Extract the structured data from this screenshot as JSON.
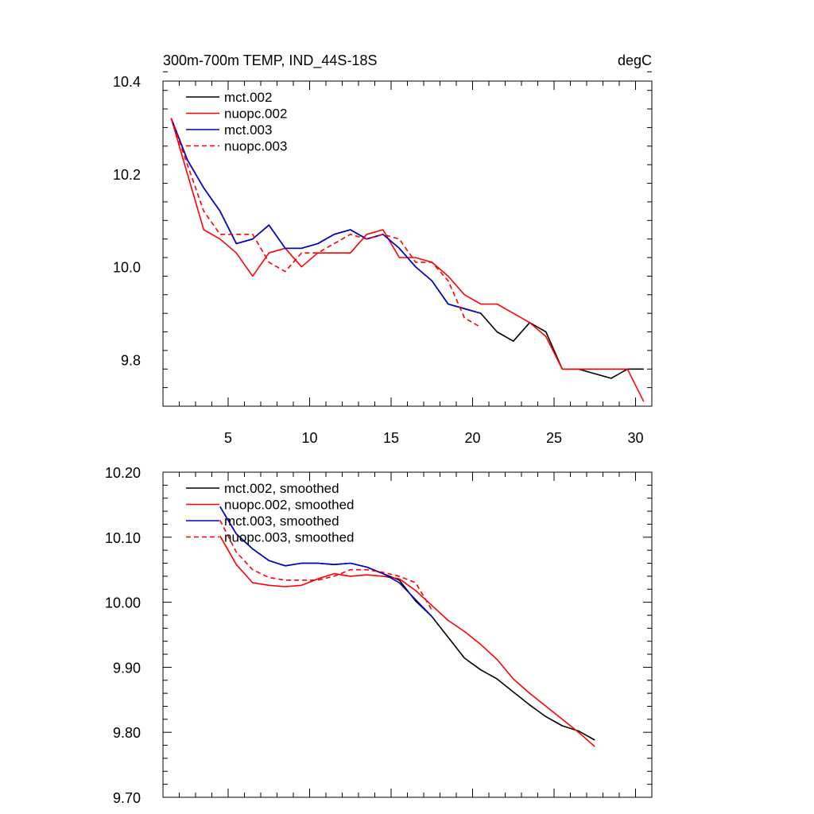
{
  "chart_data": [
    {
      "type": "line",
      "title_left": "300m-700m TEMP, IND_44S-18S",
      "title_right": "degC",
      "xlabel": "",
      "ylabel": "",
      "xlim": [
        1,
        31
      ],
      "ylim": [
        9.7,
        10.4
      ],
      "xticks": [
        5,
        10,
        15,
        20,
        25,
        30
      ],
      "xtick_labels": [
        "5",
        "10",
        "15",
        "20",
        "25",
        "30"
      ],
      "yticks": [
        9.8,
        10.0,
        10.2,
        10.4
      ],
      "ytick_labels": [
        "9.8",
        "10.0",
        "10.2",
        "10.4"
      ],
      "legend_position": "top-left",
      "series": [
        {
          "name": "mct.002",
          "color": "#000000",
          "dash": "solid",
          "x": [
            1.5,
            2.5,
            3.5,
            4.5,
            5.5,
            6.5,
            7.5,
            8.5,
            9.5,
            10.5,
            11.5,
            12.5,
            13.5,
            14.5,
            15.5,
            16.5,
            17.5,
            18.5,
            19.5,
            20.5,
            21.5,
            22.5,
            23.5,
            24.5,
            25.5,
            26.5,
            27.5,
            28.5,
            29.5,
            30.5
          ],
          "y": [
            10.32,
            10.23,
            10.17,
            10.12,
            10.05,
            10.06,
            10.09,
            10.04,
            10.04,
            10.05,
            10.07,
            10.08,
            10.06,
            10.07,
            10.04,
            10.0,
            9.97,
            9.92,
            9.91,
            9.9,
            9.86,
            9.84,
            9.88,
            9.86,
            9.78,
            9.78,
            9.77,
            9.76,
            9.78,
            9.78
          ]
        },
        {
          "name": "nuopc.002",
          "color": "#ff0000",
          "dash": "solid",
          "x": [
            1.5,
            2.5,
            3.5,
            4.5,
            5.5,
            6.5,
            7.5,
            8.5,
            9.5,
            10.5,
            11.5,
            12.5,
            13.5,
            14.5,
            15.5,
            16.5,
            17.5,
            18.5,
            19.5,
            20.5,
            21.5,
            22.5,
            23.5,
            24.5,
            25.5,
            26.5,
            27.5,
            28.5,
            29.5,
            30.5
          ],
          "y": [
            10.32,
            10.2,
            10.08,
            10.06,
            10.03,
            9.98,
            10.03,
            10.04,
            10.0,
            10.03,
            10.03,
            10.03,
            10.07,
            10.08,
            10.02,
            10.02,
            10.01,
            9.98,
            9.94,
            9.92,
            9.92,
            9.9,
            9.88,
            9.85,
            9.78,
            9.78,
            9.78,
            9.78,
            9.78,
            9.71
          ]
        },
        {
          "name": "mct.003",
          "color": "#0000cc",
          "dash": "solid",
          "x": [
            1.5,
            2.5,
            3.5,
            4.5,
            5.5,
            6.5,
            7.5,
            8.5,
            9.5,
            10.5,
            11.5,
            12.5,
            13.5,
            14.5,
            15.5,
            16.5,
            17.5,
            18.5,
            19.5,
            20.5
          ],
          "y": [
            10.32,
            10.23,
            10.17,
            10.12,
            10.05,
            10.06,
            10.09,
            10.04,
            10.04,
            10.05,
            10.07,
            10.08,
            10.06,
            10.07,
            10.04,
            10.0,
            9.97,
            9.92,
            9.91,
            9.9
          ]
        },
        {
          "name": "nuopc.003",
          "color": "#ff0000",
          "dash": "dashed",
          "x": [
            1.5,
            2.5,
            3.5,
            4.5,
            5.5,
            6.5,
            7.5,
            8.5,
            9.5,
            10.5,
            11.5,
            12.5,
            13.5,
            14.5,
            15.5,
            16.5,
            17.5,
            18.5,
            19.5,
            20.5
          ],
          "y": [
            10.32,
            10.22,
            10.12,
            10.07,
            10.07,
            10.07,
            10.01,
            9.99,
            10.03,
            10.03,
            10.05,
            10.07,
            10.06,
            10.07,
            10.06,
            10.01,
            10.01,
            9.97,
            9.89,
            9.87
          ]
        }
      ]
    },
    {
      "type": "line",
      "title_left": "",
      "title_right": "",
      "xlabel": "",
      "ylabel": "",
      "xlim": [
        1,
        31
      ],
      "ylim": [
        9.7,
        10.2
      ],
      "xticks": [
        5,
        10,
        15,
        20,
        25,
        30
      ],
      "xtick_labels": [],
      "yticks": [
        9.7,
        9.8,
        9.9,
        10.0,
        10.1,
        10.2
      ],
      "ytick_labels": [
        "9.70",
        "9.80",
        "9.90",
        "10.00",
        "10.10",
        "10.20"
      ],
      "legend_position": "top-left",
      "series": [
        {
          "name": "mct.002, smoothed",
          "color": "#000000",
          "dash": "solid",
          "x": [
            4.5,
            5.5,
            6.5,
            7.5,
            8.5,
            9.5,
            10.5,
            11.5,
            12.5,
            13.5,
            14.5,
            15.5,
            16.5,
            17.5,
            18.5,
            19.5,
            20.5,
            21.5,
            22.5,
            23.5,
            24.5,
            25.5,
            26.5,
            27.5
          ],
          "y": [
            10.147,
            10.105,
            10.082,
            10.064,
            10.056,
            10.06,
            10.06,
            10.058,
            10.06,
            10.054,
            10.044,
            10.034,
            10.002,
            9.978,
            9.946,
            9.914,
            9.896,
            9.882,
            9.862,
            9.842,
            9.824,
            9.81,
            9.802,
            9.788
          ]
        },
        {
          "name": "nuopc.002, smoothed",
          "color": "#ff0000",
          "dash": "solid",
          "x": [
            4.5,
            5.5,
            6.5,
            7.5,
            8.5,
            9.5,
            10.5,
            11.5,
            12.5,
            13.5,
            14.5,
            15.5,
            16.5,
            17.5,
            18.5,
            19.5,
            20.5,
            21.5,
            22.5,
            23.5,
            24.5,
            25.5,
            26.5,
            27.5
          ],
          "y": [
            10.102,
            10.058,
            10.03,
            10.026,
            10.024,
            10.026,
            10.036,
            10.044,
            10.04,
            10.042,
            10.04,
            10.036,
            10.018,
            9.995,
            9.972,
            9.955,
            9.935,
            9.912,
            9.882,
            9.86,
            9.84,
            9.82,
            9.8,
            9.778
          ]
        },
        {
          "name": "mct.003, smoothed",
          "color": "#0000cc",
          "dash": "solid",
          "x": [
            4.5,
            5.5,
            6.5,
            7.5,
            8.5,
            9.5,
            10.5,
            11.5,
            12.5,
            13.5,
            14.5,
            15.5,
            16.5,
            17.5
          ],
          "y": [
            10.147,
            10.105,
            10.082,
            10.064,
            10.056,
            10.06,
            10.06,
            10.058,
            10.06,
            10.054,
            10.044,
            10.03,
            10.004,
            9.978
          ]
        },
        {
          "name": "nuopc.003, smoothed",
          "color": "#ff0000",
          "dash": "dashed",
          "x": [
            4.5,
            5.5,
            6.5,
            7.5,
            8.5,
            9.5,
            10.5,
            11.5,
            12.5,
            13.5,
            14.5,
            15.5,
            16.5,
            17.5
          ],
          "y": [
            10.126,
            10.077,
            10.05,
            10.038,
            10.034,
            10.034,
            10.034,
            10.04,
            10.05,
            10.05,
            10.046,
            10.04,
            10.03,
            9.988
          ]
        }
      ]
    }
  ]
}
